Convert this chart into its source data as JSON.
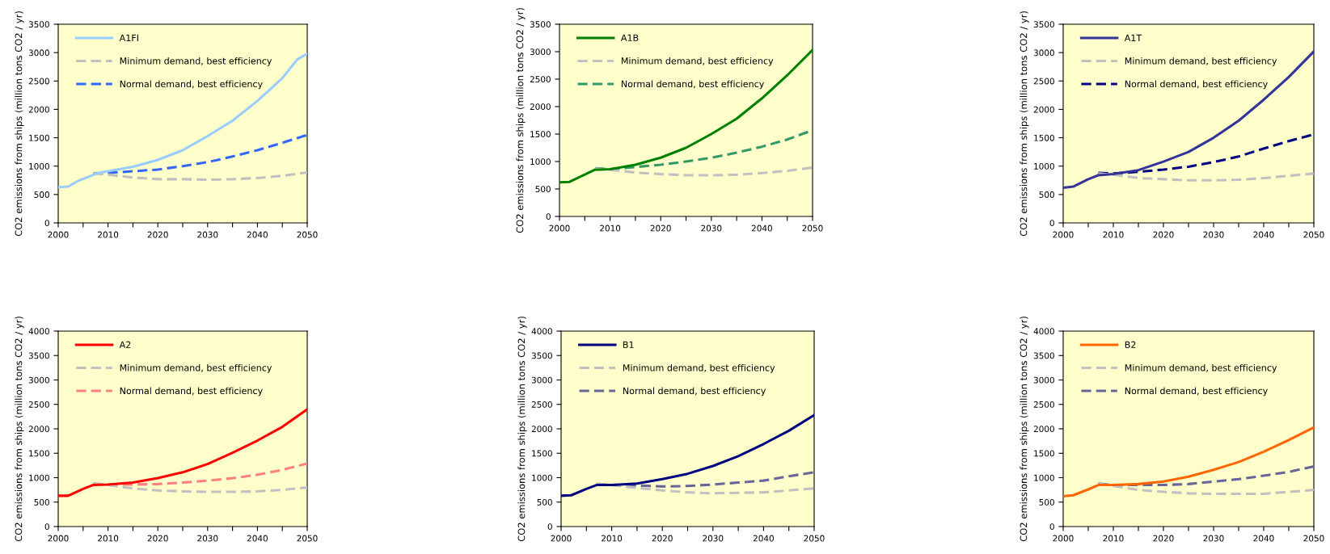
{
  "chart_data": [
    {
      "type": "line",
      "ylabel": "CO2 emissions from ships (million tons CO2 / yr)",
      "xlim": [
        2000,
        2050
      ],
      "xticks": [
        2000,
        {
          "value": 2005,
          "label": null
        },
        2010,
        {
          "value": 2015,
          "label": null
        },
        2020,
        {
          "value": 2025,
          "label": null
        },
        2030,
        {
          "value": 2035,
          "label": null
        },
        2040,
        {
          "value": 2045,
          "label": null
        },
        2050
      ],
      "ylim": [
        0,
        3500
      ],
      "yticks": [
        0,
        500,
        1000,
        1500,
        2000,
        2500,
        3000,
        3500
      ],
      "grid": false,
      "legend": "top left",
      "series": [
        {
          "name": "A1FI",
          "color": "#99ccff",
          "line_style": "solid",
          "x": [
            2000,
            2002,
            2004,
            2006,
            2008,
            2010,
            2015,
            2020,
            2025,
            2030,
            2035,
            2040,
            2045,
            2048,
            2050
          ],
          "values": [
            630,
            640,
            740,
            810,
            880,
            910,
            990,
            1110,
            1280,
            1530,
            1800,
            2150,
            2550,
            2880,
            2980
          ]
        },
        {
          "name": "Minimum demand, best efficiency",
          "color": "#c0c0c0",
          "line_style": "dashed",
          "x": [
            2007,
            2010,
            2015,
            2020,
            2025,
            2030,
            2035,
            2040,
            2045,
            2050
          ],
          "values": [
            870,
            850,
            800,
            770,
            770,
            760,
            770,
            790,
            830,
            890
          ]
        },
        {
          "name": "Normal demand, best efficiency",
          "color": "#3366ff",
          "line_style": "dashed",
          "x": [
            2007,
            2010,
            2015,
            2020,
            2025,
            2030,
            2035,
            2040,
            2045,
            2050
          ],
          "values": [
            870,
            880,
            910,
            940,
            1000,
            1070,
            1170,
            1280,
            1410,
            1550
          ]
        }
      ]
    },
    {
      "type": "line",
      "ylabel": "CO2 emissions from ships (million tons CO2 / yr)",
      "xlim": [
        2000,
        2050
      ],
      "xticks": [
        2000,
        {
          "value": 2005,
          "label": null
        },
        2010,
        {
          "value": 2015,
          "label": null
        },
        2020,
        {
          "value": 2025,
          "label": null
        },
        2030,
        {
          "value": 2035,
          "label": null
        },
        2040,
        {
          "value": 2045,
          "label": null
        },
        2050
      ],
      "ylim": [
        0,
        3500
      ],
      "yticks": [
        0,
        500,
        1000,
        1500,
        2000,
        2500,
        3000,
        3500
      ],
      "grid": false,
      "legend": "top left",
      "series": [
        {
          "name": "A1B",
          "color": "#008000",
          "line_style": "solid",
          "x": [
            2000,
            2002,
            2004,
            2007,
            2010,
            2015,
            2020,
            2025,
            2030,
            2035,
            2040,
            2045,
            2050
          ],
          "values": [
            620,
            630,
            720,
            850,
            860,
            940,
            1070,
            1250,
            1500,
            1780,
            2150,
            2570,
            3030
          ]
        },
        {
          "name": "Minimum demand, best efficiency",
          "color": "#c0c0c0",
          "line_style": "dashed",
          "x": [
            2007,
            2010,
            2015,
            2020,
            2025,
            2030,
            2035,
            2040,
            2045,
            2050
          ],
          "values": [
            870,
            850,
            800,
            770,
            750,
            750,
            760,
            790,
            830,
            890
          ]
        },
        {
          "name": "Normal demand, best efficiency",
          "color": "#339966",
          "line_style": "dashed",
          "x": [
            2007,
            2010,
            2015,
            2020,
            2025,
            2030,
            2035,
            2040,
            2045,
            2050
          ],
          "values": [
            880,
            860,
            900,
            940,
            1000,
            1070,
            1160,
            1270,
            1400,
            1570
          ]
        }
      ]
    },
    {
      "type": "line",
      "ylabel": "CO2 emissions from ships (million tons CO2 / yr)",
      "xlim": [
        2000,
        2050
      ],
      "xticks": [
        2000,
        {
          "value": 2005,
          "label": null
        },
        2010,
        {
          "value": 2015,
          "label": null
        },
        2020,
        {
          "value": 2025,
          "label": null
        },
        2030,
        {
          "value": 2035,
          "label": null
        },
        2040,
        {
          "value": 2045,
          "label": null
        },
        2050
      ],
      "ylim": [
        0,
        3500
      ],
      "yticks": [
        0,
        500,
        1000,
        1500,
        2000,
        2500,
        3000,
        3500
      ],
      "grid": false,
      "legend": "top left",
      "series": [
        {
          "name": "A1T",
          "color": "#333399",
          "line_style": "solid",
          "x": [
            2000,
            2002,
            2005,
            2007,
            2010,
            2015,
            2020,
            2025,
            2030,
            2035,
            2040,
            2045,
            2050
          ],
          "values": [
            620,
            640,
            770,
            840,
            860,
            930,
            1080,
            1250,
            1500,
            1800,
            2170,
            2570,
            3020
          ]
        },
        {
          "name": "Minimum demand, best efficiency",
          "color": "#c0c0c0",
          "line_style": "dashed",
          "x": [
            2007,
            2010,
            2015,
            2020,
            2025,
            2030,
            2035,
            2040,
            2045,
            2050
          ],
          "values": [
            870,
            850,
            790,
            770,
            750,
            750,
            760,
            790,
            830,
            870
          ]
        },
        {
          "name": "Normal demand, best efficiency",
          "color": "#000080",
          "line_style": "dashed",
          "x": [
            2007,
            2010,
            2015,
            2020,
            2025,
            2030,
            2035,
            2040,
            2045,
            2050
          ],
          "values": [
            880,
            870,
            900,
            940,
            990,
            1070,
            1170,
            1310,
            1440,
            1560
          ]
        }
      ]
    },
    {
      "type": "line",
      "ylabel": "CO2 emissions from ships (million tons CO2 / yr)",
      "xlim": [
        2000,
        2050
      ],
      "xticks": [
        2000,
        {
          "value": 2005,
          "label": null
        },
        2010,
        {
          "value": 2015,
          "label": null
        },
        2020,
        {
          "value": 2025,
          "label": null
        },
        2030,
        {
          "value": 2035,
          "label": null
        },
        2040,
        {
          "value": 2045,
          "label": null
        },
        2050
      ],
      "ylim": [
        0,
        4000
      ],
      "yticks": [
        0,
        500,
        1000,
        1500,
        2000,
        2500,
        3000,
        3500,
        4000
      ],
      "grid": false,
      "legend": "top left",
      "series": [
        {
          "name": "A2",
          "color": "#ff0000",
          "line_style": "solid",
          "x": [
            2000,
            2002,
            2005,
            2007,
            2010,
            2015,
            2020,
            2025,
            2030,
            2035,
            2040,
            2045,
            2050
          ],
          "values": [
            630,
            630,
            770,
            850,
            860,
            900,
            990,
            1110,
            1280,
            1510,
            1760,
            2040,
            2400
          ]
        },
        {
          "name": "Minimum demand, best efficiency",
          "color": "#c0c0c0",
          "line_style": "dashed",
          "x": [
            2007,
            2010,
            2015,
            2020,
            2025,
            2030,
            2035,
            2040,
            2045,
            2050
          ],
          "values": [
            880,
            850,
            780,
            740,
            720,
            710,
            710,
            720,
            750,
            800
          ]
        },
        {
          "name": "Normal demand, best efficiency",
          "color": "#ff8080",
          "line_style": "dashed",
          "x": [
            2007,
            2010,
            2015,
            2020,
            2025,
            2030,
            2035,
            2040,
            2045,
            2050
          ],
          "values": [
            880,
            860,
            860,
            870,
            900,
            940,
            990,
            1060,
            1160,
            1290
          ]
        }
      ]
    },
    {
      "type": "line",
      "ylabel": "CO2 emissions from ships (million tons CO2 / yr)",
      "xlim": [
        2000,
        2050
      ],
      "xticks": [
        2000,
        {
          "value": 2005,
          "label": null
        },
        2010,
        {
          "value": 2015,
          "label": null
        },
        2020,
        {
          "value": 2025,
          "label": null
        },
        2030,
        {
          "value": 2035,
          "label": null
        },
        2040,
        {
          "value": 2045,
          "label": null
        },
        2050
      ],
      "ylim": [
        0,
        4000
      ],
      "yticks": [
        0,
        500,
        1000,
        1500,
        2000,
        2500,
        3000,
        3500,
        4000
      ],
      "grid": false,
      "legend": "top left",
      "series": [
        {
          "name": "B1",
          "color": "#000080",
          "line_style": "solid",
          "x": [
            2000,
            2002,
            2005,
            2007,
            2010,
            2015,
            2020,
            2025,
            2030,
            2035,
            2040,
            2045,
            2050
          ],
          "values": [
            630,
            640,
            770,
            850,
            850,
            880,
            970,
            1080,
            1240,
            1440,
            1690,
            1960,
            2280
          ]
        },
        {
          "name": "Minimum demand, best efficiency",
          "color": "#c0c0c0",
          "line_style": "dashed",
          "x": [
            2007,
            2010,
            2015,
            2020,
            2025,
            2030,
            2035,
            2040,
            2045,
            2050
          ],
          "values": [
            880,
            850,
            790,
            740,
            700,
            680,
            690,
            700,
            740,
            780
          ]
        },
        {
          "name": "Normal demand, best efficiency",
          "color": "#666699",
          "line_style": "dashed",
          "x": [
            2007,
            2010,
            2015,
            2020,
            2025,
            2030,
            2035,
            2040,
            2045,
            2050
          ],
          "values": [
            870,
            850,
            840,
            820,
            830,
            860,
            900,
            940,
            1030,
            1110
          ]
        }
      ]
    },
    {
      "type": "line",
      "ylabel": "CO2 emissions from ships (million tons CO2 / yr)",
      "xlim": [
        2000,
        2050
      ],
      "xticks": [
        2000,
        {
          "value": 2005,
          "label": null
        },
        2010,
        {
          "value": 2015,
          "label": null
        },
        2020,
        {
          "value": 2025,
          "label": null
        },
        2030,
        {
          "value": 2035,
          "label": null
        },
        2040,
        {
          "value": 2045,
          "label": null
        },
        2050
      ],
      "ylim": [
        0,
        4000
      ],
      "yticks": [
        0,
        500,
        1000,
        1500,
        2000,
        2500,
        3000,
        3500,
        4000
      ],
      "grid": false,
      "legend": "top left",
      "series": [
        {
          "name": "B2",
          "color": "#ff6600",
          "line_style": "solid",
          "x": [
            2000,
            2002,
            2005,
            2007,
            2010,
            2015,
            2020,
            2025,
            2030,
            2035,
            2040,
            2045,
            2050
          ],
          "values": [
            620,
            640,
            760,
            850,
            850,
            870,
            920,
            1020,
            1160,
            1320,
            1530,
            1770,
            2030
          ]
        },
        {
          "name": "Minimum demand, best efficiency",
          "color": "#c0c0c0",
          "line_style": "dashed",
          "x": [
            2007,
            2010,
            2015,
            2020,
            2025,
            2030,
            2035,
            2040,
            2045,
            2050
          ],
          "values": [
            880,
            830,
            750,
            710,
            680,
            670,
            670,
            670,
            710,
            750
          ]
        },
        {
          "name": "Normal demand, best efficiency",
          "color": "#666699",
          "line_style": "dashed",
          "x": [
            2007,
            2010,
            2015,
            2020,
            2025,
            2030,
            2035,
            2040,
            2045,
            2050
          ],
          "values": [
            880,
            850,
            850,
            850,
            870,
            920,
            970,
            1040,
            1120,
            1230
          ]
        }
      ]
    }
  ]
}
